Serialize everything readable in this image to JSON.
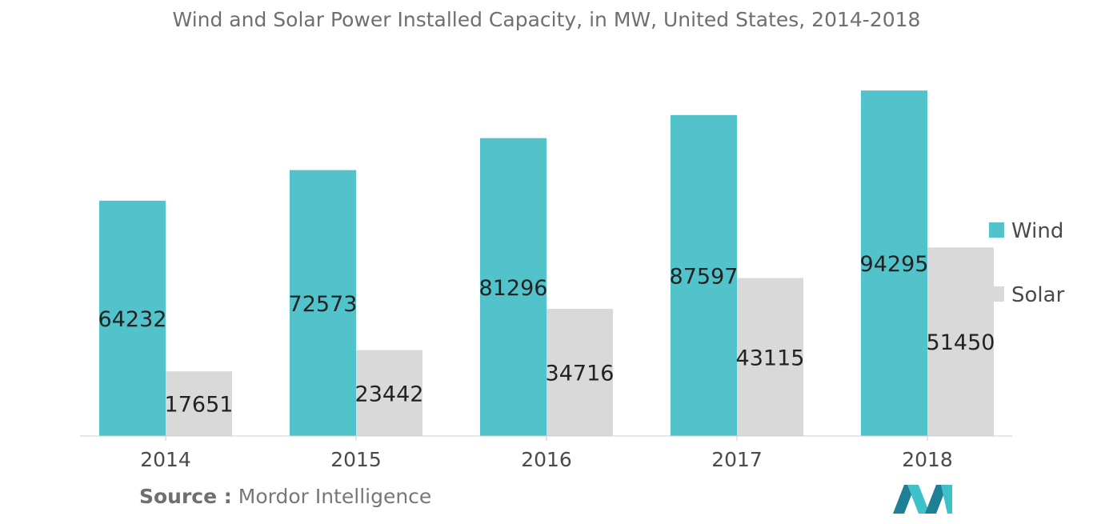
{
  "chart_data": {
    "type": "bar",
    "title": "Wind and Solar Power Installed Capacity, in MW, United States, 2014-2018",
    "categories": [
      "2014",
      "2015",
      "2016",
      "2017",
      "2018"
    ],
    "series": [
      {
        "name": "Wind",
        "color": "#52c3cb",
        "values": [
          64232,
          72573,
          81296,
          87597,
          94295
        ]
      },
      {
        "name": "Solar",
        "color": "#d9d9d9",
        "values": [
          17651,
          23442,
          34716,
          43115,
          51450
        ]
      }
    ],
    "xlabel": "",
    "ylabel": "",
    "ylim": [
      0,
      100000
    ],
    "legend_position": "right"
  },
  "source": {
    "label": "Source :",
    "text": "Mordor Intelligence"
  },
  "logo": {
    "name": "mordor-intelligence-logo",
    "colors": [
      "#1f7f95",
      "#3fc1c9"
    ]
  }
}
